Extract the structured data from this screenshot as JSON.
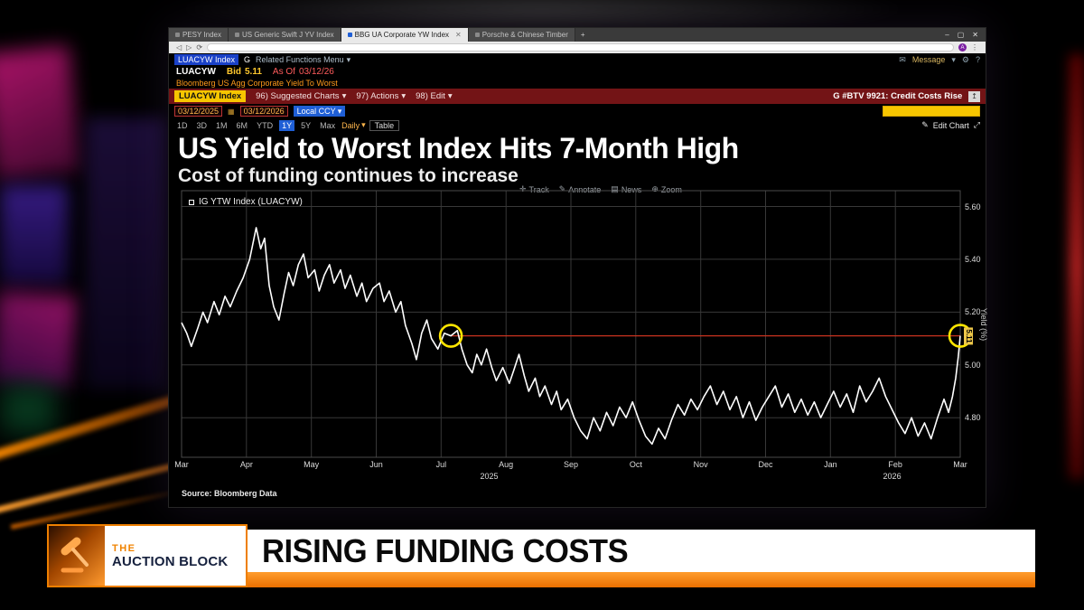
{
  "colors": {
    "chart_bg": "#000000",
    "series_line": "#ffffff",
    "level_line": "#c8321e",
    "marker": "#ffe600",
    "accent_yellow": "#f7c600",
    "maroon_bar": "#731416",
    "amber_text": "#ff9a1a",
    "active_blue": "#1f5fd6",
    "banner_orange": "#ee7f00",
    "banner_white": "#ffffff"
  },
  "icons": {
    "plus": "+",
    "minimize": "–",
    "maximize": "▢",
    "close": "✕",
    "back": "◁",
    "forward": "▷",
    "refresh": "⟳",
    "menu_dots": "⋮",
    "dropdown": "▾",
    "mail": "✉",
    "gear": "⚙",
    "help": "?",
    "calendar": "▦",
    "pencil": "✎",
    "expand": "⤢",
    "export": "↥",
    "track": "✛",
    "news": "▤",
    "zoom": "⊕",
    "avatar": "A"
  },
  "browser": {
    "tabs": [
      {
        "label": "PESY Index",
        "active": false
      },
      {
        "label": "US Generic Swift J YV Index",
        "active": false
      },
      {
        "label": "BBG UA Corporate YW Index",
        "active": true
      },
      {
        "label": "Porsche & Chinese Timber",
        "active": false
      }
    ]
  },
  "terminal": {
    "command": {
      "security": "LUACYW Index",
      "hotkey": "G",
      "menu": "Related Functions Menu",
      "message_label": "Message"
    },
    "quote": {
      "ticker": "LUACYW",
      "bid_label": "Bid",
      "bid_value": "5.11",
      "asof_label": "As Of",
      "asof_date": "03/12/26"
    },
    "description": "Bloomberg US Agg Corporate Yield To Worst",
    "menubar": {
      "security_chip": "LUACYW Index",
      "items": [
        "96) Suggested Charts",
        "97) Actions",
        "98) Edit"
      ],
      "headline": "G #BTV 9921: Credit Costs Rise"
    },
    "rangebar": {
      "date_from": "03/12/2025",
      "date_to": "03/12/2026",
      "currency": "Local CCY",
      "table_label": "Table",
      "edit_chart_label": "Edit Chart"
    },
    "periods": [
      "1D",
      "3D",
      "1M",
      "6M",
      "YTD",
      "1Y",
      "5Y",
      "Max"
    ],
    "active_period": "1Y",
    "frequency": "Daily",
    "chart_tools": [
      "Track",
      "Annotate",
      "News",
      "Zoom"
    ]
  },
  "chart_data": {
    "type": "line",
    "title": "US Yield to Worst Index Hits 7-Month High",
    "subtitle": "Cost of funding continues to increase",
    "ylabel": "Yield (%)",
    "xlim": [
      0,
      12
    ],
    "ylim": [
      4.65,
      5.66
    ],
    "yticks": [
      4.8,
      5.0,
      5.2,
      5.4,
      5.6
    ],
    "grid": true,
    "legend_position": "top-left",
    "x_tick_labels": [
      "Mar",
      "Apr",
      "May",
      "Jun",
      "Jul",
      "Aug",
      "Sep",
      "Oct",
      "Nov",
      "Dec",
      "Jan",
      "Feb",
      "Mar"
    ],
    "x_year_labels": [
      {
        "label": "2025",
        "x": 4.74
      },
      {
        "label": "2026",
        "x": 10.95
      }
    ],
    "series": [
      {
        "name": "IG YTW Index (LUACYW)",
        "color": "#ffffff",
        "points": [
          [
            0,
            5.16
          ],
          [
            0.08,
            5.12
          ],
          [
            0.15,
            5.07
          ],
          [
            0.25,
            5.14
          ],
          [
            0.33,
            5.2
          ],
          [
            0.4,
            5.16
          ],
          [
            0.5,
            5.24
          ],
          [
            0.58,
            5.19
          ],
          [
            0.67,
            5.26
          ],
          [
            0.75,
            5.22
          ],
          [
            0.85,
            5.28
          ],
          [
            0.95,
            5.33
          ],
          [
            1.05,
            5.4
          ],
          [
            1.15,
            5.52
          ],
          [
            1.22,
            5.44
          ],
          [
            1.28,
            5.48
          ],
          [
            1.35,
            5.3
          ],
          [
            1.42,
            5.22
          ],
          [
            1.5,
            5.17
          ],
          [
            1.58,
            5.27
          ],
          [
            1.65,
            5.35
          ],
          [
            1.72,
            5.3
          ],
          [
            1.8,
            5.38
          ],
          [
            1.88,
            5.42
          ],
          [
            1.95,
            5.33
          ],
          [
            2.05,
            5.36
          ],
          [
            2.12,
            5.28
          ],
          [
            2.2,
            5.34
          ],
          [
            2.28,
            5.38
          ],
          [
            2.35,
            5.31
          ],
          [
            2.45,
            5.36
          ],
          [
            2.52,
            5.29
          ],
          [
            2.6,
            5.34
          ],
          [
            2.7,
            5.26
          ],
          [
            2.78,
            5.31
          ],
          [
            2.85,
            5.24
          ],
          [
            2.95,
            5.29
          ],
          [
            3.05,
            5.31
          ],
          [
            3.12,
            5.24
          ],
          [
            3.2,
            5.28
          ],
          [
            3.3,
            5.2
          ],
          [
            3.38,
            5.24
          ],
          [
            3.45,
            5.15
          ],
          [
            3.55,
            5.08
          ],
          [
            3.62,
            5.02
          ],
          [
            3.7,
            5.12
          ],
          [
            3.78,
            5.17
          ],
          [
            3.85,
            5.1
          ],
          [
            3.95,
            5.06
          ],
          [
            4.05,
            5.12
          ],
          [
            4.15,
            5.11
          ],
          [
            4.25,
            5.13
          ],
          [
            4.32,
            5.06
          ],
          [
            4.4,
            5.0
          ],
          [
            4.48,
            4.97
          ],
          [
            4.55,
            5.04
          ],
          [
            4.62,
            5.0
          ],
          [
            4.7,
            5.06
          ],
          [
            4.78,
            4.99
          ],
          [
            4.85,
            4.94
          ],
          [
            4.95,
            4.99
          ],
          [
            5.05,
            4.93
          ],
          [
            5.12,
            4.98
          ],
          [
            5.2,
            5.04
          ],
          [
            5.28,
            4.96
          ],
          [
            5.35,
            4.9
          ],
          [
            5.45,
            4.95
          ],
          [
            5.52,
            4.88
          ],
          [
            5.6,
            4.92
          ],
          [
            5.7,
            4.85
          ],
          [
            5.78,
            4.9
          ],
          [
            5.85,
            4.83
          ],
          [
            5.95,
            4.87
          ],
          [
            6.05,
            4.8
          ],
          [
            6.15,
            4.75
          ],
          [
            6.25,
            4.72
          ],
          [
            6.35,
            4.8
          ],
          [
            6.45,
            4.75
          ],
          [
            6.55,
            4.82
          ],
          [
            6.65,
            4.77
          ],
          [
            6.75,
            4.84
          ],
          [
            6.85,
            4.8
          ],
          [
            6.95,
            4.86
          ],
          [
            7.05,
            4.79
          ],
          [
            7.15,
            4.73
          ],
          [
            7.25,
            4.7
          ],
          [
            7.35,
            4.76
          ],
          [
            7.45,
            4.72
          ],
          [
            7.55,
            4.79
          ],
          [
            7.65,
            4.85
          ],
          [
            7.75,
            4.81
          ],
          [
            7.85,
            4.87
          ],
          [
            7.95,
            4.83
          ],
          [
            8.05,
            4.88
          ],
          [
            8.15,
            4.92
          ],
          [
            8.25,
            4.85
          ],
          [
            8.35,
            4.9
          ],
          [
            8.45,
            4.83
          ],
          [
            8.55,
            4.88
          ],
          [
            8.65,
            4.8
          ],
          [
            8.75,
            4.86
          ],
          [
            8.85,
            4.79
          ],
          [
            8.95,
            4.84
          ],
          [
            9.05,
            4.88
          ],
          [
            9.15,
            4.92
          ],
          [
            9.25,
            4.84
          ],
          [
            9.35,
            4.89
          ],
          [
            9.45,
            4.82
          ],
          [
            9.55,
            4.87
          ],
          [
            9.65,
            4.81
          ],
          [
            9.75,
            4.86
          ],
          [
            9.85,
            4.8
          ],
          [
            9.95,
            4.85
          ],
          [
            10.05,
            4.9
          ],
          [
            10.15,
            4.84
          ],
          [
            10.25,
            4.89
          ],
          [
            10.35,
            4.82
          ],
          [
            10.45,
            4.92
          ],
          [
            10.55,
            4.86
          ],
          [
            10.65,
            4.9
          ],
          [
            10.75,
            4.95
          ],
          [
            10.85,
            4.88
          ],
          [
            10.95,
            4.83
          ],
          [
            11.05,
            4.78
          ],
          [
            11.15,
            4.74
          ],
          [
            11.25,
            4.8
          ],
          [
            11.35,
            4.73
          ],
          [
            11.45,
            4.78
          ],
          [
            11.55,
            4.72
          ],
          [
            11.65,
            4.8
          ],
          [
            11.75,
            4.87
          ],
          [
            11.82,
            4.82
          ],
          [
            11.88,
            4.88
          ],
          [
            11.93,
            4.95
          ],
          [
            11.97,
            5.03
          ],
          [
            12,
            5.11
          ]
        ]
      }
    ],
    "annotations": {
      "level_line": 5.11,
      "level_start_x": 4.15,
      "level_color": "#c8321e",
      "markers": [
        {
          "x": 4.15,
          "y": 5.11
        },
        {
          "x": 12,
          "y": 5.11
        }
      ],
      "marker_color": "#ffe600",
      "last_value_label": "5.11"
    },
    "source": "Source: Bloomberg Data"
  },
  "lower_third": {
    "show_kicker": "THE",
    "show_name": "AUCTION BLOCK",
    "headline": "RISING FUNDING COSTS"
  }
}
